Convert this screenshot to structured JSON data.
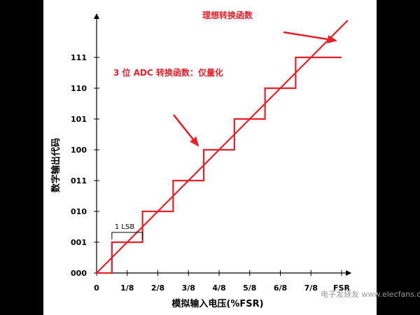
{
  "chart_data": {
    "type": "line",
    "title": "",
    "xlabel": "模拟输入电压(%FSR)",
    "ylabel": "数字输出代码",
    "x_ticks": [
      "0",
      "1/8",
      "2/8",
      "3/8",
      "4/8",
      "5/8",
      "6/8",
      "7/8",
      "FSR"
    ],
    "y_ticks": [
      "000",
      "001",
      "010",
      "011",
      "100",
      "101",
      "110",
      "111"
    ],
    "xlim": [
      0,
      8
    ],
    "ylim": [
      0,
      7
    ],
    "series": [
      {
        "name": "",
        "kind": "ideal-line",
        "color": "#e8202a",
        "x": [
          0,
          8.2
        ],
        "y": [
          0,
          8.2
        ]
      },
      {
        "name": "",
        "kind": "staircase",
        "color": "#e8202a",
        "x": [
          0,
          0.5,
          0.5,
          1.5,
          1.5,
          2.5,
          2.5,
          3.5,
          3.5,
          4.5,
          4.5,
          5.5,
          5.5,
          6.5,
          6.5,
          8.0
        ],
        "y": [
          0,
          0,
          1,
          1,
          2,
          2,
          3,
          3,
          4,
          4,
          5,
          5,
          6,
          6,
          7,
          7
        ]
      }
    ],
    "annotations": [
      {
        "text": "理想转换函数",
        "color": "#e8202a",
        "points_to": [
          8.0,
          7.5
        ]
      },
      {
        "text": "3 位 ADC 转换函数：仅量化",
        "color": "#e8202a",
        "points_to": [
          3.5,
          4
        ]
      },
      {
        "text": "1 LSB",
        "color": "#000000",
        "span_x": [
          0.5,
          1.5
        ]
      }
    ]
  },
  "watermark": "电子发烧友 www.elecfans.com"
}
